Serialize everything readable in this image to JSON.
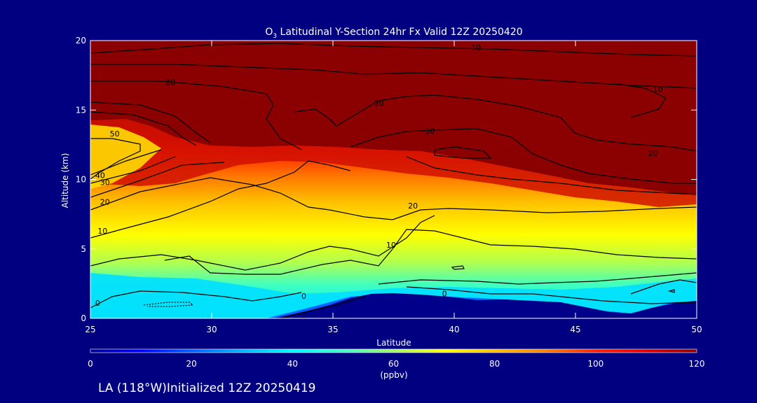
{
  "chart_data": {
    "type": "heatmap",
    "title_main": "O",
    "title_sub": "3",
    "title_rest": " Latitudinal Y-Section 24hr  Fx Valid 12Z 20250420",
    "xlabel": "Latitude",
    "ylabel": "Altitude (km)",
    "xlim": [
      25,
      50
    ],
    "ylim": [
      0,
      20
    ],
    "x_ticks": [
      "25",
      "30",
      "35",
      "40",
      "45",
      "50"
    ],
    "y_ticks": [
      "0",
      "5",
      "10",
      "15",
      "20"
    ],
    "colorbar": {
      "range": [
        0,
        120
      ],
      "ticks": [
        "0",
        "20",
        "40",
        "60",
        "80",
        "100",
        "120"
      ],
      "unit_label": "(ppbv)",
      "colors": [
        "#00008b",
        "#0000ff",
        "#0060ff",
        "#00b4ff",
        "#00ffff",
        "#40ffc0",
        "#a0ff60",
        "#ffff00",
        "#ffc000",
        "#ff8000",
        "#ff2000",
        "#e00000",
        "#8b0000"
      ]
    },
    "contour_labels": [
      {
        "text": "10",
        "lat": 40.9,
        "alt": 19.5
      },
      {
        "text": "20",
        "lat": 28.3,
        "alt": 17.0
      },
      {
        "text": "20",
        "lat": 36.9,
        "alt": 15.5
      },
      {
        "text": "10",
        "lat": 48.4,
        "alt": 16.5
      },
      {
        "text": "30",
        "lat": 39.0,
        "alt": 13.5
      },
      {
        "text": "20",
        "lat": 48.2,
        "alt": 11.9
      },
      {
        "text": "50",
        "lat": 26.0,
        "alt": 13.3
      },
      {
        "text": "40",
        "lat": 25.4,
        "alt": 10.3
      },
      {
        "text": "30",
        "lat": 25.6,
        "alt": 9.8
      },
      {
        "text": "20",
        "lat": 25.6,
        "alt": 8.4
      },
      {
        "text": "20",
        "lat": 38.3,
        "alt": 8.1
      },
      {
        "text": "10",
        "lat": 25.5,
        "alt": 6.3
      },
      {
        "text": "10",
        "lat": 37.4,
        "alt": 5.3
      },
      {
        "text": "0",
        "lat": 25.3,
        "alt": 1.1
      },
      {
        "text": "0",
        "lat": 33.8,
        "alt": 1.6
      },
      {
        "text": "0",
        "lat": 33.8,
        "alt": 0.2
      },
      {
        "text": "0",
        "lat": 39.6,
        "alt": 1.8
      }
    ]
  },
  "footer": {
    "caption": "LA (118°W)Initialized 12Z 20250419"
  }
}
